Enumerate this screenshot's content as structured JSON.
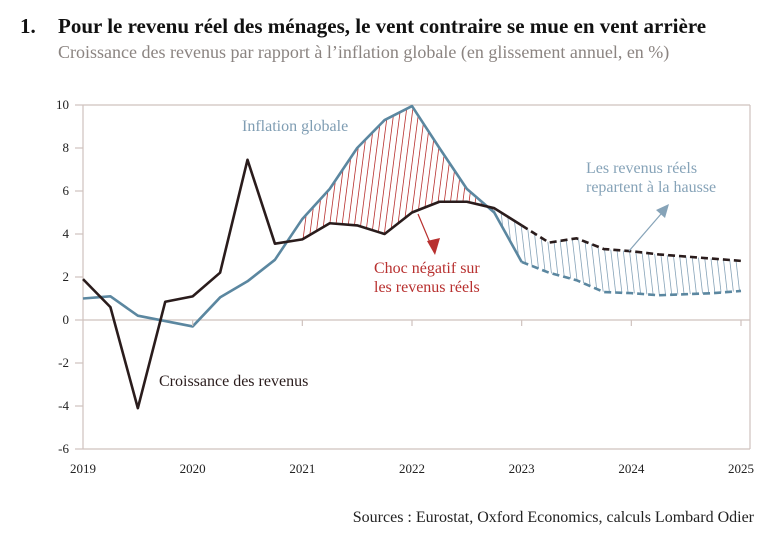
{
  "header": {
    "number": "1.",
    "title": "Pour le revenu réel des ménages, le vent contraire se mue en vent arrière",
    "subtitle": "Croissance des revenus par rapport à l’inflation globale (en glissement annuel, en %)"
  },
  "source": "Sources : Eurostat, Oxford Economics, calculs Lombard Odier",
  "colors": {
    "inflation": "#5b87a0",
    "income": "#2a1c1c",
    "negative_shock": "#b8302f",
    "recovery": "#86a3b8",
    "axis": "#cfc2be",
    "subtitle": "#8b8481"
  },
  "chart_data": {
    "type": "line",
    "title": "Pour le revenu réel des ménages, le vent contraire se mue en vent arrière",
    "subtitle": "Croissance des revenus par rapport à l’inflation globale (en glissement annuel, en %)",
    "xlabel": "",
    "ylabel": "",
    "ylim": [
      -6,
      10
    ],
    "yticks": [
      "10",
      "8",
      "6",
      "4",
      "2",
      "0",
      "-2",
      "-4",
      "-6"
    ],
    "ytick_values": [
      10,
      8,
      6,
      4,
      2,
      0,
      -2,
      -4,
      -6
    ],
    "xlim": [
      2019.0,
      2025.0
    ],
    "xticks": [
      "2019",
      "2020",
      "2021",
      "2022",
      "2023",
      "2024",
      "2025"
    ],
    "xtick_values": [
      2019,
      2020,
      2021,
      2022,
      2023,
      2024,
      2025
    ],
    "grid": false,
    "legend": "none (inline labels)",
    "x": [
      2019.0,
      2019.25,
      2019.5,
      2019.75,
      2020.0,
      2020.25,
      2020.5,
      2020.75,
      2021.0,
      2021.25,
      2021.5,
      2021.75,
      2022.0,
      2022.25,
      2022.5,
      2022.75,
      2023.0,
      2023.25,
      2023.5,
      2023.75,
      2024.0,
      2024.25,
      2024.5,
      2024.75,
      2025.0
    ],
    "forecast_from": 2023.0,
    "series": [
      {
        "name": "Inflation globale",
        "values": [
          1.0,
          1.1,
          0.2,
          -0.05,
          -0.3,
          1.05,
          1.8,
          2.8,
          4.7,
          6.1,
          8.0,
          9.3,
          9.95,
          8.0,
          6.1,
          5.0,
          2.7,
          2.2,
          1.85,
          1.3,
          1.25,
          1.15,
          1.2,
          1.25,
          1.35
        ]
      },
      {
        "name": "Croissance des revenus",
        "values": [
          1.9,
          0.6,
          -4.1,
          0.85,
          1.1,
          2.2,
          7.45,
          3.55,
          3.75,
          4.5,
          4.4,
          4.0,
          5.0,
          5.5,
          5.5,
          5.2,
          4.4,
          3.6,
          3.8,
          3.3,
          3.2,
          3.05,
          2.95,
          2.85,
          2.75
        ]
      }
    ],
    "annotations": [
      {
        "text": "Inflation globale",
        "series": "Inflation globale"
      },
      {
        "text": "Croissance des revenus",
        "series": "Croissance des revenus"
      },
      {
        "text": "Choc négatif sur les revenus réels",
        "lines": [
          "Choc négatif sur",
          "les revenus réels"
        ],
        "shading": "red hatch where inflation > income (2021–2022)"
      },
      {
        "text": "Les revenus réels repartent à la hausse",
        "lines": [
          "Les revenus réels",
          "repartent à la hausse"
        ],
        "shading": "blue hatch where income > inflation (2022–2025)"
      }
    ]
  }
}
